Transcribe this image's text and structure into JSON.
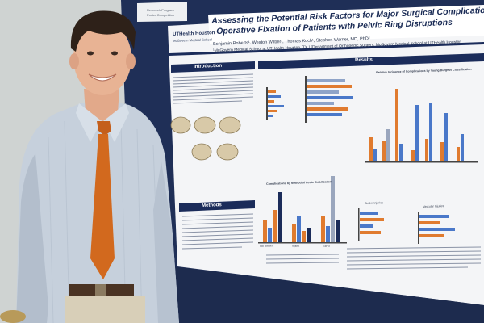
{
  "poster": {
    "title_line1": "Assessing the Potential Risk Factors for Major Surgical Complications in",
    "title_line2": "Operative Fixation of Patients with Pelvic Ring Disruptions",
    "authors": "Benjamin Roberts¹, Weston Wilber¹, Thomas Koch¹, Stephen Warner, MD, PhD²",
    "affiliation": "¹McGovern Medical School at UTHealth Houston, TX   |   ²Department of Orthopedic Surgery, McGovern Medical School at UTHealth Houston",
    "logo_text": "UTHealth Houston",
    "logo_sub": "McGovern Medical School",
    "sections": {
      "introduction": "Introduction",
      "results": "Results",
      "methods": "Methods"
    },
    "chart_titles": {
      "relative_incidence": "Relative Incidence of Complications by Young-Burgess Classification",
      "by_method": "Complications by Method of Acute Stabilization",
      "binder": "Binder Injuries",
      "vascular": "Vascular Injuries"
    },
    "side_labels": {
      "binder": "No Binder",
      "splint": "Splint",
      "ex_fix": "ExFix"
    }
  },
  "wall_tag": {
    "line1": "Research Program",
    "line2": "Poster Competition"
  },
  "colors": {
    "navy": "#1b2c5a",
    "orange": "#e07b2f",
    "blue": "#4a78c9",
    "tie": "#d2691e",
    "shirt": "#c9d3df",
    "wall": "#d9dcdc",
    "board": "#1f2f57"
  }
}
